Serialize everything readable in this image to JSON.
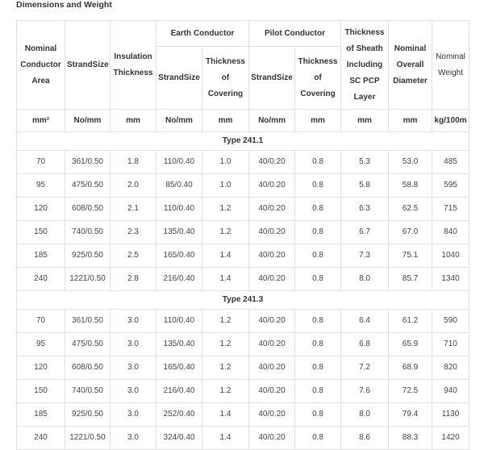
{
  "title": "Dimensions and Weight",
  "headers": {
    "nominal_area": "Nominal Conductor Area",
    "strand_size": "StrandSize",
    "insulation": "Insulation Thickness",
    "earth": "Earth Conductor",
    "earth_strand": "StrandSize",
    "earth_cov": "Thickness of Covering",
    "pilot": "Pilot Conductor",
    "pilot_strand": "StrandSize",
    "pilot_cov": "Thickness of Covering",
    "sheath": "Thickness of Sheath Including SC PCP Layer",
    "diameter": "Nominal Overall Diameter",
    "weight": "Nominal Weight"
  },
  "units": [
    "mm²",
    "No/mm",
    "mm",
    "No/mm",
    "mm",
    "No/mm",
    "mm",
    "mm",
    "mm",
    "kg/100m"
  ],
  "groups": [
    {
      "name": "Type 241.1",
      "rows": [
        [
          "70",
          "361/0.50",
          "1.8",
          "110/0.40",
          "1.0",
          "40/0.20",
          "0.8",
          "5.3",
          "53.0",
          "485"
        ],
        [
          "95",
          "475/0.50",
          "2.0",
          "85/0.40",
          "1.0",
          "40/0.20",
          "0.8",
          "5.8",
          "58.8",
          "595"
        ],
        [
          "120",
          "608/0.50",
          "2.1",
          "110/0.40",
          "1.2",
          "40/0.20",
          "0.8",
          "6.3",
          "62.5",
          "715"
        ],
        [
          "150",
          "740/0.50",
          "2.3",
          "135/0.40",
          "1.2",
          "40/0.20",
          "0.8",
          "6.7",
          "67.0",
          "840"
        ],
        [
          "185",
          "925/0.50",
          "2.5",
          "165/0.40",
          "1.4",
          "40/0.20",
          "0.8",
          "7.3",
          "75.1",
          "1040"
        ],
        [
          "240",
          "1221/0.50",
          "2.8",
          "216/0.40",
          "1.4",
          "40/0.20",
          "0.8",
          "8.0",
          "85.7",
          "1340"
        ]
      ]
    },
    {
      "name": "Type 241.3",
      "rows": [
        [
          "70",
          "361/0.50",
          "3.0",
          "110/0.40",
          "1.2",
          "40/0.20",
          "0.8",
          "6.4",
          "61.2",
          "590"
        ],
        [
          "95",
          "475/0.50",
          "3.0",
          "135/0.40",
          "1.2",
          "40/0.20",
          "0.8",
          "6.8",
          "65.9",
          "710"
        ],
        [
          "120",
          "608/0.50",
          "3.0",
          "165/0.40",
          "1.2",
          "40/0.20",
          "0.8",
          "7.2",
          "68.9",
          "820"
        ],
        [
          "150",
          "740/0.50",
          "3.0",
          "216/0.40",
          "1.2",
          "40/0.20",
          "0.8",
          "7.6",
          "72.5",
          "940"
        ],
        [
          "185",
          "925/0.50",
          "3.0",
          "252/0.40",
          "1.4",
          "40/0.20",
          "0.8",
          "8.0",
          "79.4",
          "1130"
        ],
        [
          "240",
          "1221/0.50",
          "3.0",
          "324/0.40",
          "1.4",
          "40/0.20",
          "0.8",
          "8.6",
          "88.3",
          "1420"
        ]
      ]
    }
  ]
}
